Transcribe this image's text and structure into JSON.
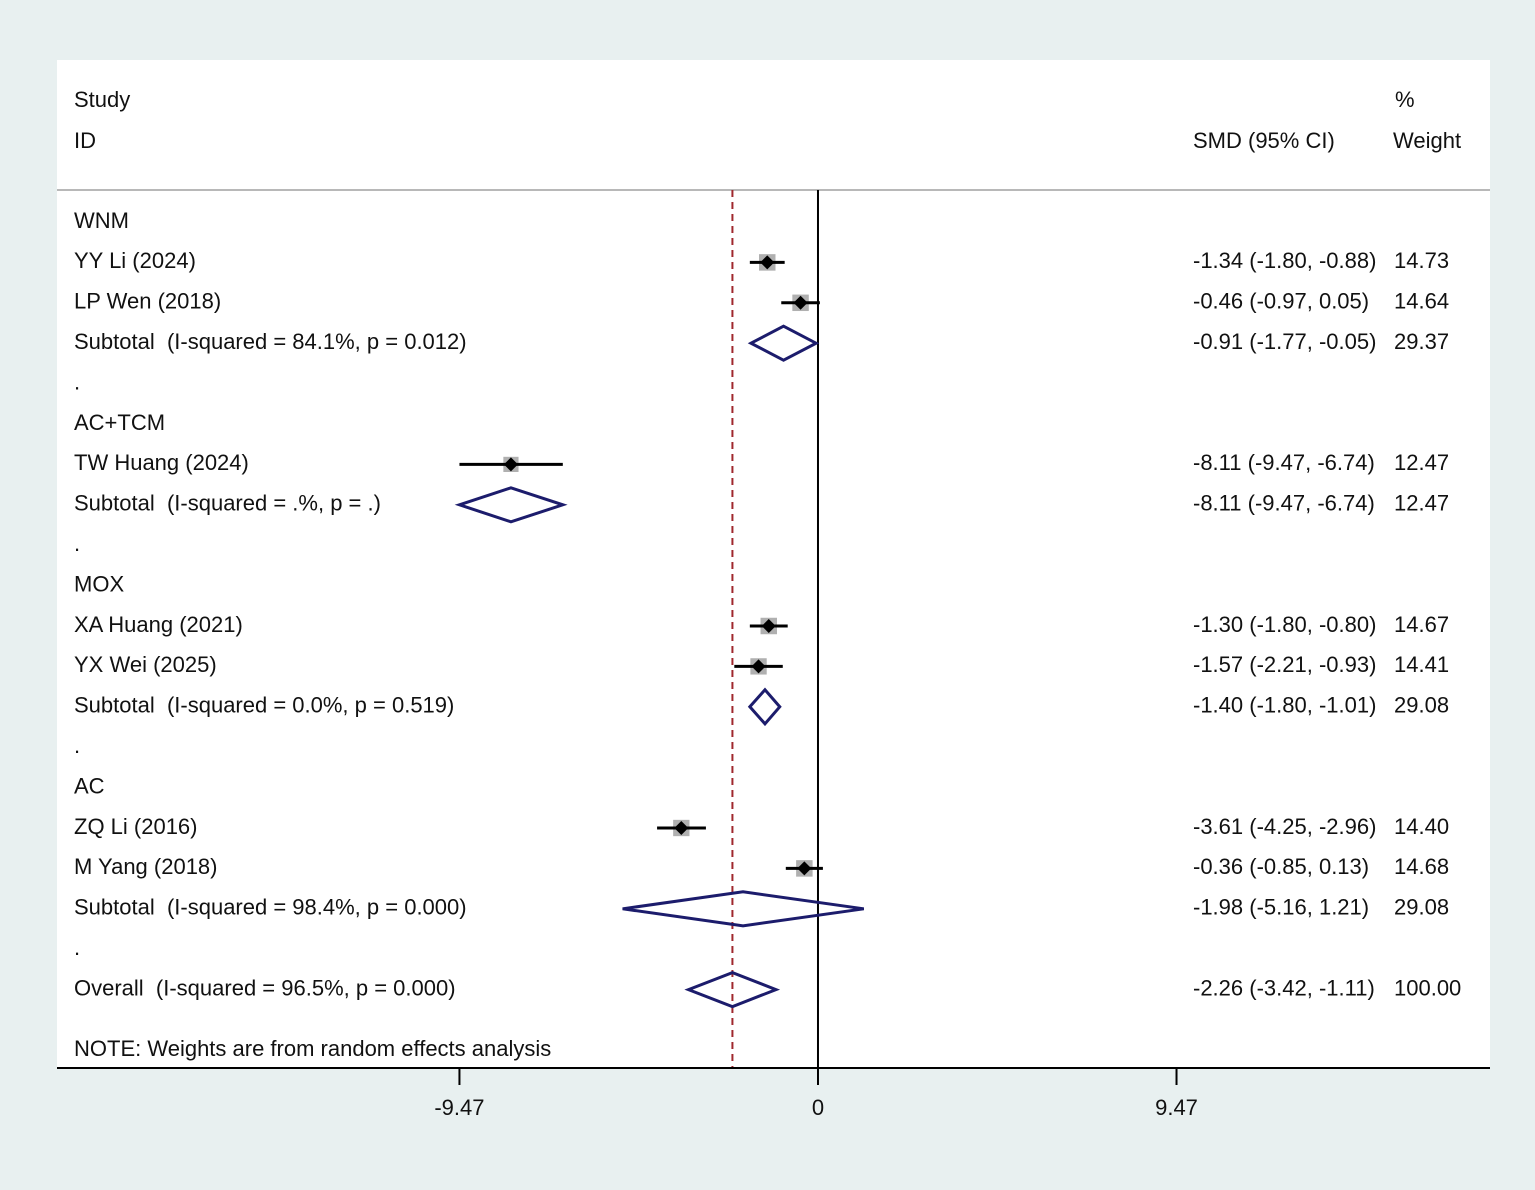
{
  "chart_data": {
    "type": "forest",
    "headers": {
      "study_top": "Study",
      "study": "ID",
      "estimate": "SMD (95% CI)",
      "weight_top": "%",
      "weight": "Weight"
    },
    "separator": ".",
    "groups": [
      {
        "name": "WNM",
        "studies": [
          {
            "label": "YY Li (2024)",
            "smd": -1.34,
            "ci": [
              -1.8,
              -0.88
            ],
            "ci_label": "-1.34 (-1.80, -0.88)",
            "weight": 14.73
          },
          {
            "label": "LP Wen (2018)",
            "smd": -0.46,
            "ci": [
              -0.97,
              0.05
            ],
            "ci_label": "-0.46 (-0.97, 0.05)",
            "weight": 14.64
          }
        ],
        "subtotal": {
          "label": "Subtotal  (I-squared = 84.1%, p = 0.012)",
          "smd": -0.91,
          "ci": [
            -1.77,
            -0.05
          ],
          "ci_label": "-0.91 (-1.77, -0.05)",
          "weight": 29.37
        }
      },
      {
        "name": "AC+TCM",
        "studies": [
          {
            "label": "TW Huang (2024)",
            "smd": -8.11,
            "ci": [
              -9.47,
              -6.74
            ],
            "ci_label": "-8.11 (-9.47, -6.74)",
            "weight": 12.47
          }
        ],
        "subtotal": {
          "label": "Subtotal  (I-squared = .%, p = .)",
          "smd": -8.11,
          "ci": [
            -9.47,
            -6.74
          ],
          "ci_label": "-8.11 (-9.47, -6.74)",
          "weight": 12.47
        }
      },
      {
        "name": "MOX",
        "studies": [
          {
            "label": "XA Huang (2021)",
            "smd": -1.3,
            "ci": [
              -1.8,
              -0.8
            ],
            "ci_label": "-1.30 (-1.80, -0.80)",
            "weight": 14.67
          },
          {
            "label": "YX Wei (2025)",
            "smd": -1.57,
            "ci": [
              -2.21,
              -0.93
            ],
            "ci_label": "-1.57 (-2.21, -0.93)",
            "weight": 14.41
          }
        ],
        "subtotal": {
          "label": "Subtotal  (I-squared = 0.0%, p = 0.519)",
          "smd": -1.4,
          "ci": [
            -1.8,
            -1.01
          ],
          "ci_label": "-1.40 (-1.80, -1.01)",
          "weight": 29.08
        }
      },
      {
        "name": "AC",
        "studies": [
          {
            "label": "ZQ Li (2016)",
            "smd": -3.61,
            "ci": [
              -4.25,
              -2.96
            ],
            "ci_label": "-3.61 (-4.25, -2.96)",
            "weight": 14.4,
            "weight_label": "14.40"
          },
          {
            "label": "M Yang (2018)",
            "smd": -0.36,
            "ci": [
              -0.85,
              0.13
            ],
            "ci_label": "-0.36 (-0.85, 0.13)",
            "weight": 14.68
          }
        ],
        "subtotal": {
          "label": "Subtotal  (I-squared = 98.4%, p = 0.000)",
          "smd": -1.98,
          "ci": [
            -5.16,
            1.21
          ],
          "ci_label": "-1.98 (-5.16, 1.21)",
          "weight": 29.08
        }
      }
    ],
    "overall": {
      "label": "Overall  (I-squared = 96.5%, p = 0.000)",
      "smd": -2.26,
      "ci": [
        -3.42,
        -1.11
      ],
      "ci_label": "-2.26 (-3.42, -1.11)",
      "weight": 100,
      "weight_label": "100.00"
    },
    "note": "NOTE: Weights are from random effects analysis",
    "xlim": [
      -20.1,
      17.75
    ],
    "xticks": [
      -9.47,
      0,
      9.47
    ],
    "null_line": 0,
    "colors": {
      "ci": "#000000",
      "box": "#b0b0b0",
      "diamond": "#1c1c6c",
      "overall_line": "#a0282d"
    }
  }
}
